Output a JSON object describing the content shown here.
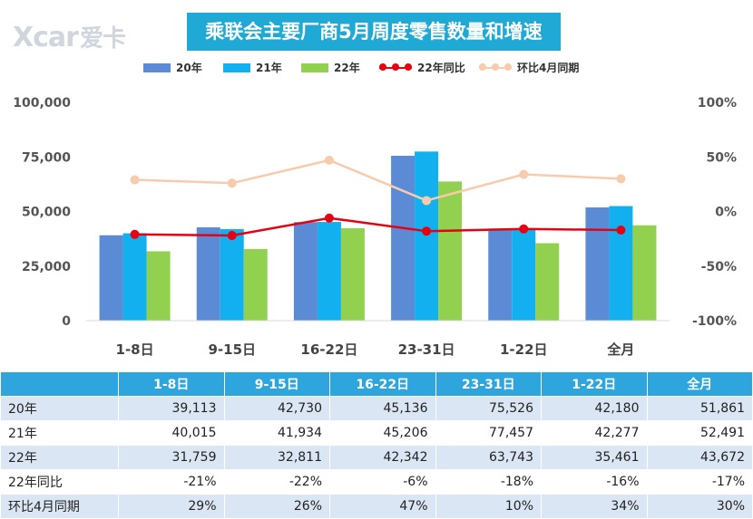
{
  "logo": {
    "text": "Xcar",
    "cn": "爱卡"
  },
  "title": "乘联会主要厂商5月周度零售数量和增速",
  "legend": {
    "s20": "20年",
    "s21": "21年",
    "s22": "22年",
    "yoy": "22年同比",
    "mom": "环比4月同期"
  },
  "colors": {
    "s20": "#5b8bd5",
    "s21": "#12b0ef",
    "s22": "#92d050",
    "yoy": "#e60012",
    "mom": "#f8cbad",
    "header": "#2ea6dd",
    "stripe": "#dbe6f4"
  },
  "chart_data": {
    "type": "bar",
    "categories": [
      "1-8日",
      "9-15日",
      "16-22日",
      "23-31日",
      "1-22日",
      "全月"
    ],
    "series": [
      {
        "name": "20年",
        "values": [
          39113,
          42730,
          45136,
          75526,
          42180,
          51861
        ]
      },
      {
        "name": "21年",
        "values": [
          40015,
          41934,
          45206,
          77457,
          42277,
          52491
        ]
      },
      {
        "name": "22年",
        "values": [
          31759,
          32811,
          42342,
          63743,
          35461,
          43672
        ]
      }
    ],
    "line_series": [
      {
        "name": "22年同比",
        "values": [
          -21,
          -22,
          -6,
          -18,
          -16,
          -17
        ],
        "axis": "right"
      },
      {
        "name": "环比4月同期",
        "values": [
          29,
          26,
          47,
          10,
          34,
          30
        ],
        "axis": "right"
      }
    ],
    "ylim": [
      0,
      100000
    ],
    "yticks": [
      "0",
      "25,000",
      "50,000",
      "75,000",
      "100,000"
    ],
    "y2lim": [
      -100,
      100
    ],
    "y2ticks": [
      "-100%",
      "-50%",
      "0%",
      "50%",
      "100%"
    ],
    "legend_position": "top"
  },
  "table": {
    "headers": [
      "",
      "1-8日",
      "9-15日",
      "16-22日",
      "23-31日",
      "1-22日",
      "全月"
    ],
    "rows": [
      {
        "label": "20年",
        "cells": [
          "39,113",
          "42,730",
          "45,136",
          "75,526",
          "42,180",
          "51,861"
        ]
      },
      {
        "label": "21年",
        "cells": [
          "40,015",
          "41,934",
          "45,206",
          "77,457",
          "42,277",
          "52,491"
        ]
      },
      {
        "label": "22年",
        "cells": [
          "31,759",
          "32,811",
          "42,342",
          "63,743",
          "35,461",
          "43,672"
        ]
      },
      {
        "label": "22年同比",
        "cells": [
          "-21%",
          "-22%",
          "-6%",
          "-18%",
          "-16%",
          "-17%"
        ]
      },
      {
        "label": "环比4月同期",
        "cells": [
          "29%",
          "26%",
          "47%",
          "10%",
          "34%",
          "30%"
        ]
      }
    ]
  }
}
